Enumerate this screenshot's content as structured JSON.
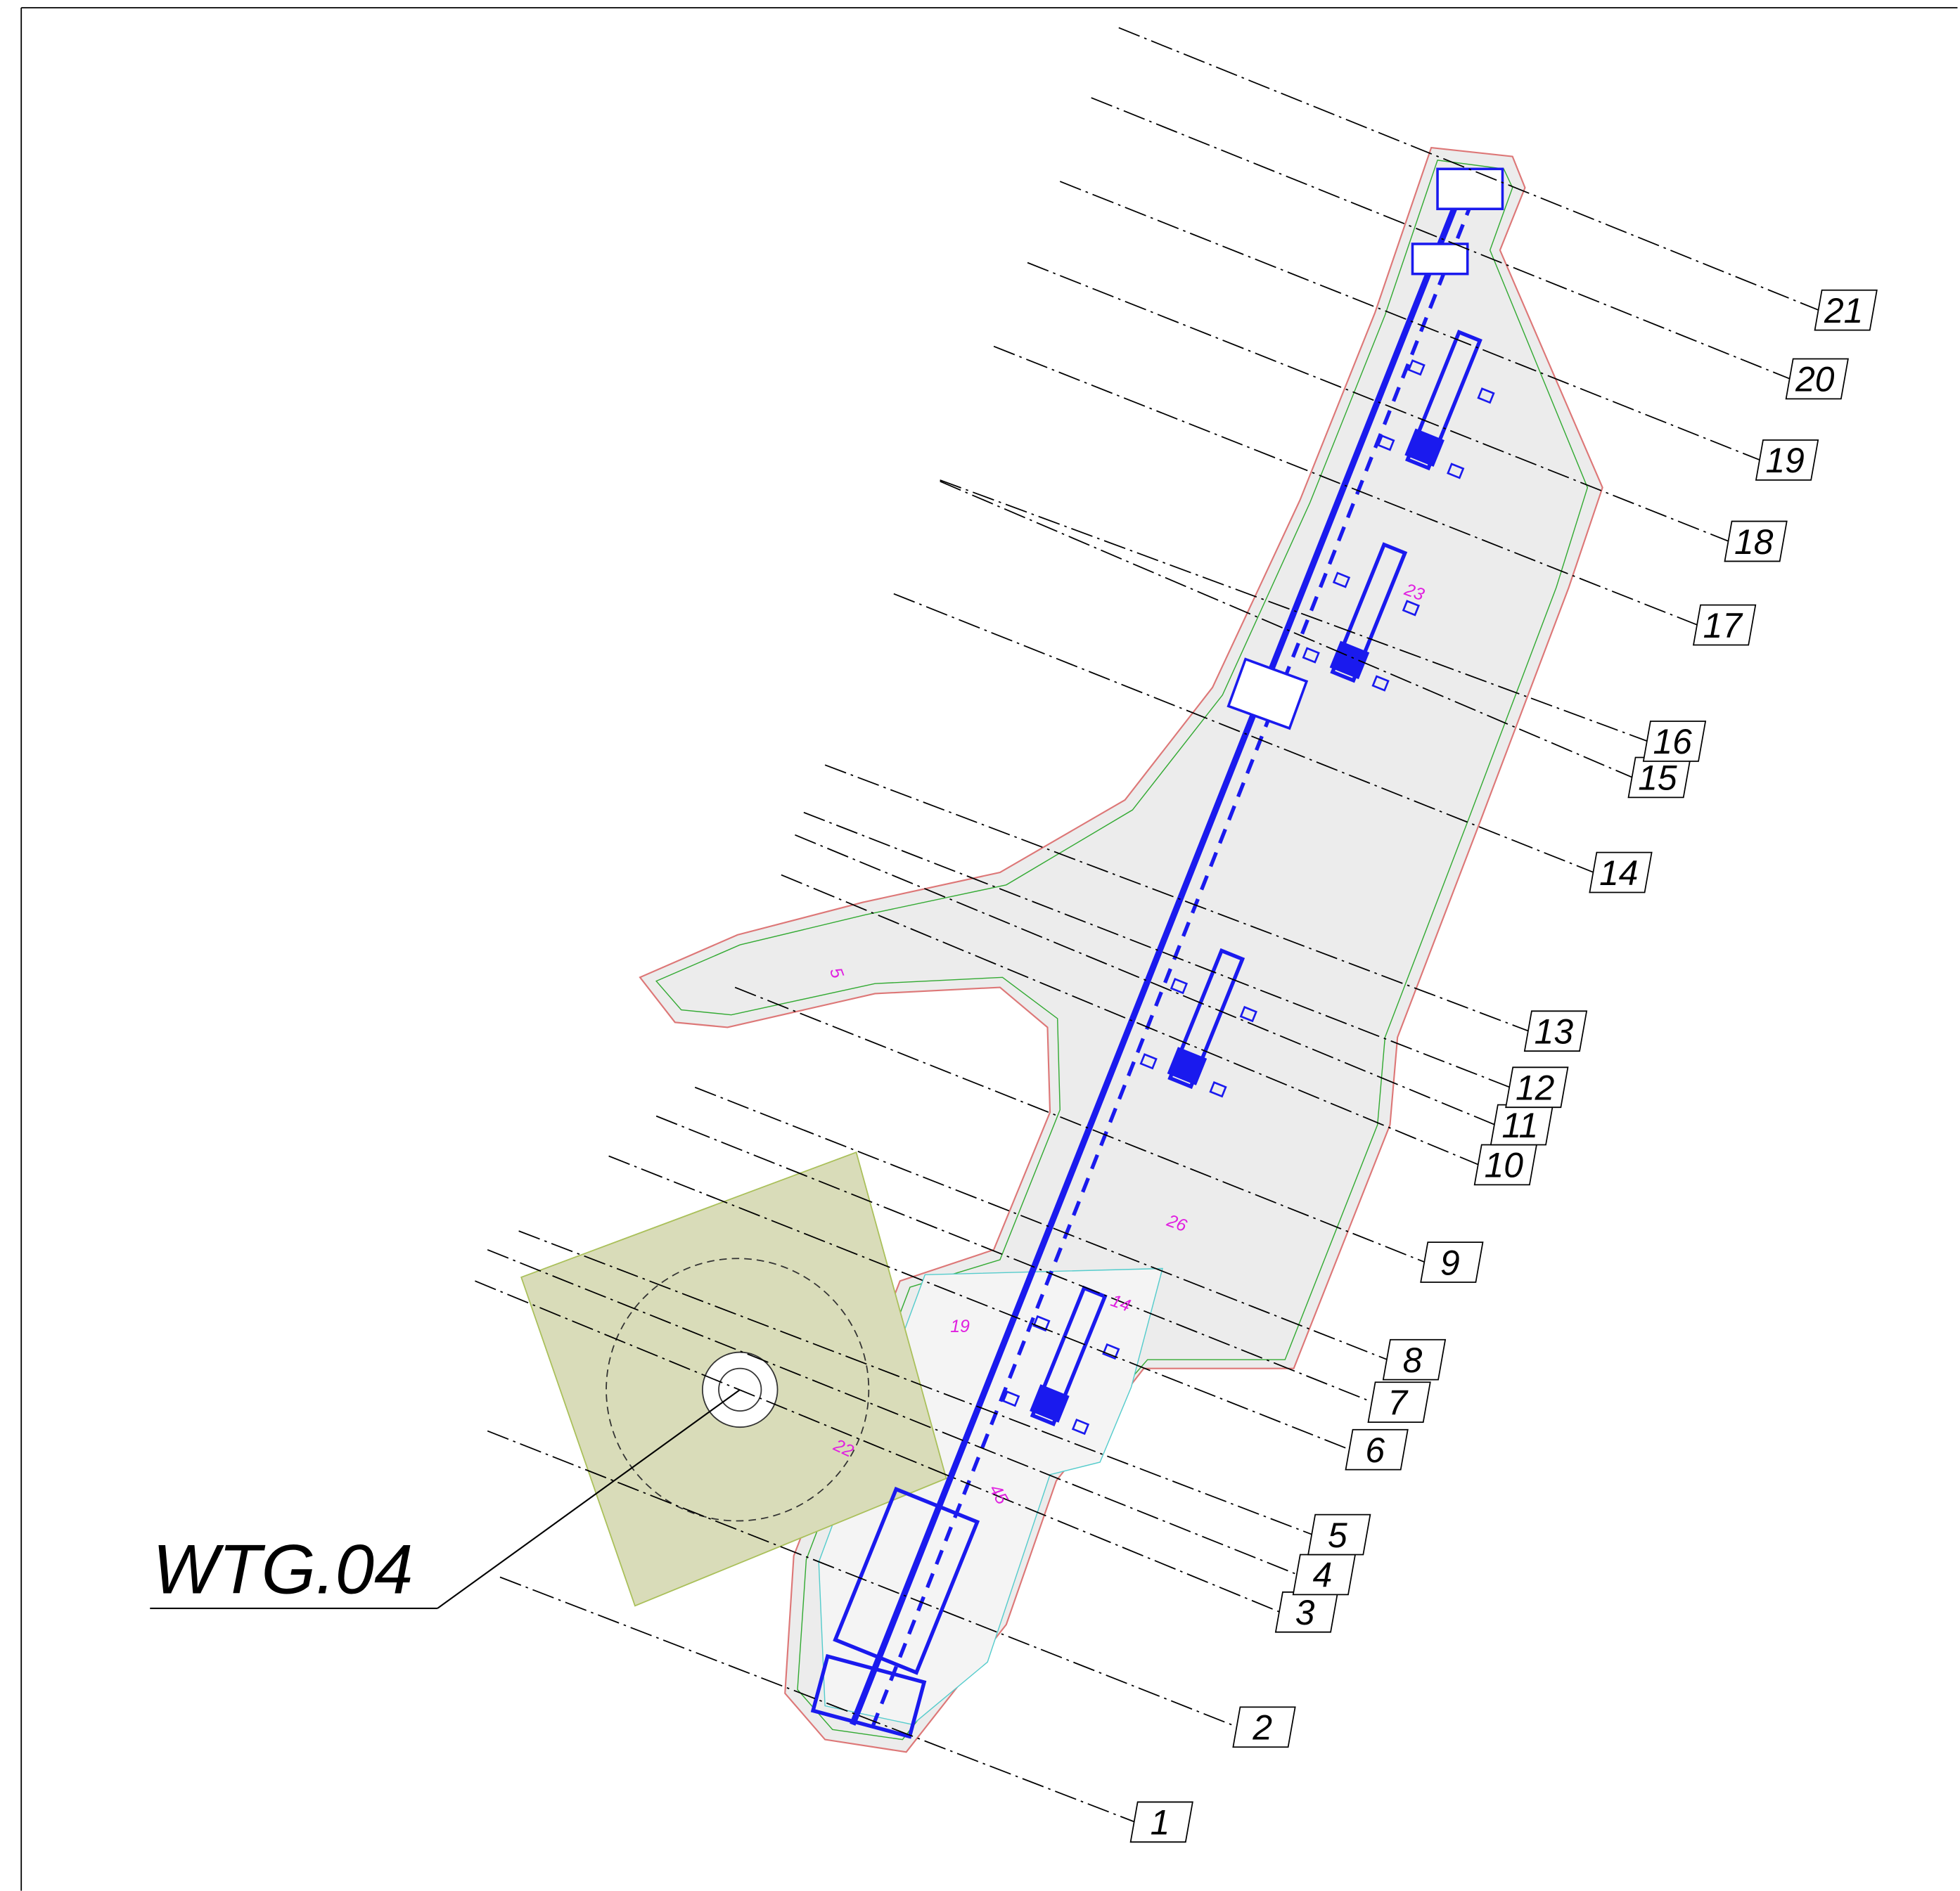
{
  "turbine_label": "WTG.04",
  "section_labels": [
    "1",
    "2",
    "3",
    "4",
    "5",
    "6",
    "7",
    "8",
    "9",
    "10",
    "11",
    "12",
    "13",
    "14",
    "15",
    "16",
    "17",
    "18",
    "19",
    "20",
    "21"
  ],
  "dimension_labels": [
    "5",
    "23",
    "26",
    "14",
    "19",
    "22",
    "45"
  ]
}
